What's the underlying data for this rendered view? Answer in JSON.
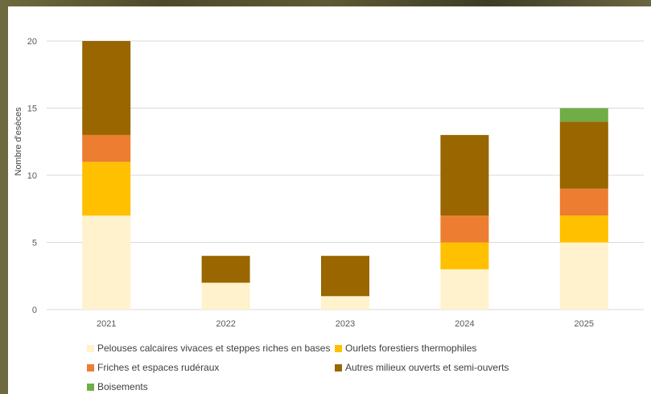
{
  "chart_data": {
    "type": "bar",
    "stacked": true,
    "title": "",
    "xlabel": "",
    "ylabel": "Nombre d'esèces",
    "ylim": [
      0,
      20
    ],
    "yticks": [
      0,
      5,
      10,
      15,
      20
    ],
    "grid": true,
    "legend_position": "bottom",
    "categories": [
      "2021",
      "2022",
      "2023",
      "2024",
      "2025"
    ],
    "series": [
      {
        "name": "Pelouses calcaires vivaces et steppes riches en bases",
        "color": "#FFF2CC",
        "values": [
          7,
          2,
          1,
          3,
          5
        ]
      },
      {
        "name": "Ourlets forestiers thermophiles",
        "color": "#FFC000",
        "values": [
          4,
          0,
          0,
          2,
          2
        ]
      },
      {
        "name": "Friches et espaces rudéraux",
        "color": "#ED7D31",
        "values": [
          2,
          0,
          0,
          2,
          2
        ]
      },
      {
        "name": "Autres milieux ouverts et semi-ouverts",
        "color": "#996600",
        "values": [
          7,
          2,
          3,
          6,
          5
        ]
      },
      {
        "name": "Boisements",
        "color": "#70AD47",
        "values": [
          0,
          0,
          0,
          0,
          1
        ]
      }
    ]
  }
}
